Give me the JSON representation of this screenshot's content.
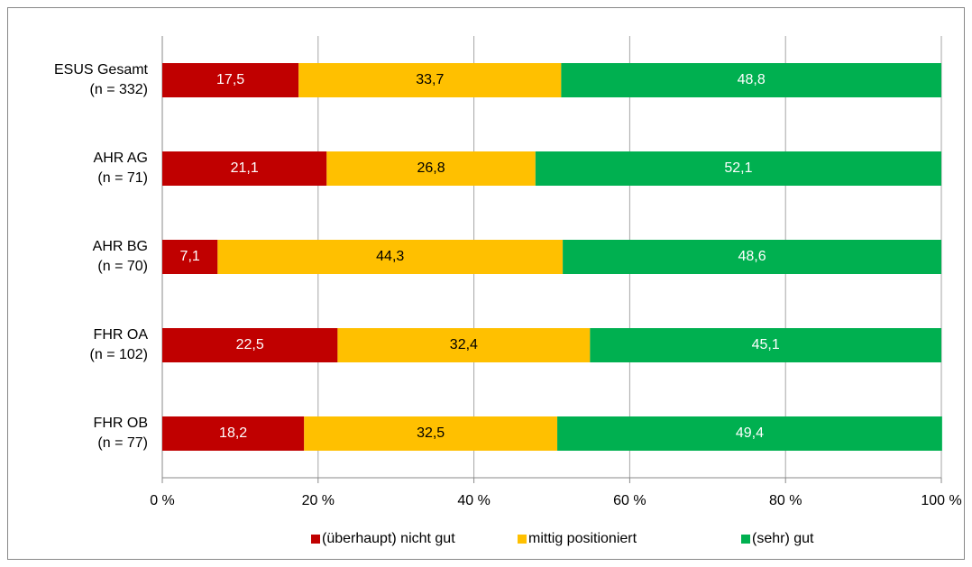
{
  "chart_data": {
    "type": "stacked-barh",
    "categories": [
      [
        "ESUS Gesamt",
        "(n = 332)"
      ],
      [
        "AHR AG",
        "(n = 71)"
      ],
      [
        "AHR BG",
        "(n = 70)"
      ],
      [
        "FHR OA",
        "(n = 102)"
      ],
      [
        "FHR OB",
        "(n = 77)"
      ]
    ],
    "series": [
      {
        "name": "(überhaupt) nicht gut",
        "color": "#c00000",
        "label_color": "#ffffff",
        "values": [
          17.5,
          21.1,
          7.1,
          22.5,
          18.2
        ],
        "value_labels": [
          "17,5",
          "21,1",
          "7,1",
          "22,5",
          "18,2"
        ]
      },
      {
        "name": "mittig positioniert",
        "color": "#ffc000",
        "label_color": "#000000",
        "values": [
          33.7,
          26.8,
          44.3,
          32.4,
          32.5
        ],
        "value_labels": [
          "33,7",
          "26,8",
          "44,3",
          "32,4",
          "32,5"
        ]
      },
      {
        "name": "(sehr) gut",
        "color": "#00b050",
        "label_color": "#ffffff",
        "values": [
          48.8,
          52.1,
          48.6,
          45.1,
          49.4
        ],
        "value_labels": [
          "48,8",
          "52,1",
          "48,6",
          "45,1",
          "49,4"
        ]
      }
    ],
    "xlim": [
      0,
      100
    ],
    "xticks": [
      {
        "value": 0,
        "label": "0 %"
      },
      {
        "value": 20,
        "label": "20 %"
      },
      {
        "value": 40,
        "label": "40 %"
      },
      {
        "value": 60,
        "label": "60 %"
      },
      {
        "value": 80,
        "label": "80 %"
      },
      {
        "value": 100,
        "label": "100 %"
      }
    ],
    "grid": true,
    "legend": "bottom"
  }
}
